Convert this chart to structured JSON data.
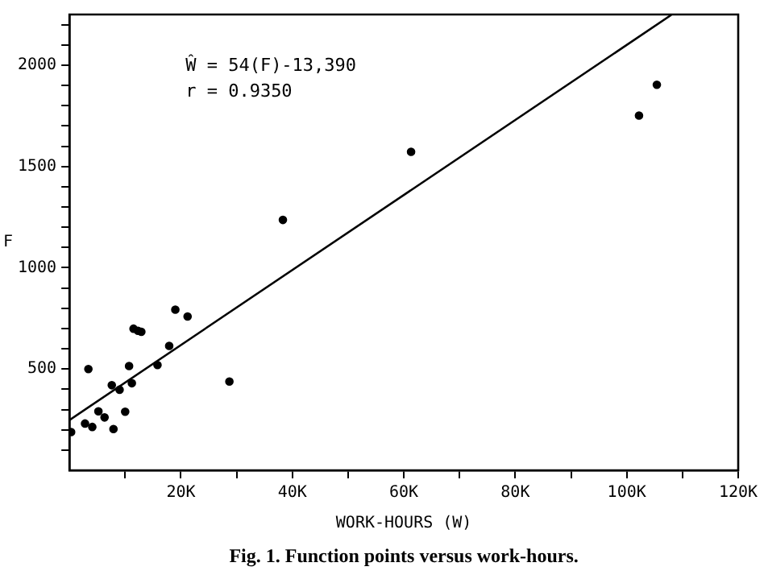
{
  "chart_data": {
    "type": "scatter",
    "xlabel": "WORK-HOURS (W)",
    "ylabel": "F",
    "annotations": [
      "Ŵ = 54(F)-13,390",
      "r = 0.9350",
      "Fig. 1. Function points versus work-hours."
    ],
    "xlim": [
      0,
      120000
    ],
    "xticks": [
      {
        "value": 10000,
        "label": null
      },
      {
        "value": 20000,
        "label": "20K"
      },
      {
        "value": 30000,
        "label": null
      },
      {
        "value": 40000,
        "label": "40K"
      },
      {
        "value": 50000,
        "label": null
      },
      {
        "value": 60000,
        "label": "60K"
      },
      {
        "value": 70000,
        "label": null
      },
      {
        "value": 80000,
        "label": "80K"
      },
      {
        "value": 90000,
        "label": null
      },
      {
        "value": 100000,
        "label": "100K"
      },
      {
        "value": 110000,
        "label": null
      },
      {
        "value": 120000,
        "label": "120K"
      }
    ],
    "ylim": [
      0,
      2250
    ],
    "yticks": [
      {
        "value": 100,
        "label": null
      },
      {
        "value": 200,
        "label": null
      },
      {
        "value": 300,
        "label": null
      },
      {
        "value": 400,
        "label": null
      },
      500,
      {
        "value": 600,
        "label": null
      },
      {
        "value": 700,
        "label": null
      },
      {
        "value": 800,
        "label": null
      },
      {
        "value": 900,
        "label": null
      },
      1000,
      {
        "value": 1100,
        "label": null
      },
      {
        "value": 1200,
        "label": null
      },
      {
        "value": 1300,
        "label": null
      },
      {
        "value": 1400,
        "label": null
      },
      1500,
      {
        "value": 1600,
        "label": null
      },
      {
        "value": 1700,
        "label": null
      },
      {
        "value": 1800,
        "label": null
      },
      {
        "value": 1900,
        "label": null
      },
      2000,
      {
        "value": 2100,
        "label": null
      },
      {
        "value": 2200,
        "label": null
      }
    ],
    "grid": false,
    "marker": "circle",
    "series": [
      {
        "type": "scatter",
        "color": "#000000",
        "x": [
          300,
          2800,
          4100,
          3400,
          5200,
          6300,
          7900,
          7600,
          9000,
          10000,
          10700,
          11200,
          11500,
          12300,
          12900,
          15800,
          17900,
          19000,
          21200,
          28700,
          38300,
          61300,
          102200,
          105400
        ],
        "values": [
          189,
          231,
          214,
          500,
          291,
          261,
          204,
          420,
          398,
          289,
          515,
          430,
          699,
          689,
          684,
          520,
          614,
          793,
          759,
          438,
          1236,
          1572,
          1751,
          1903
        ]
      },
      {
        "type": "line",
        "color": "#000000",
        "marker": "none",
        "x": [
          0,
          108000
        ],
        "values": [
          248,
          2248
        ]
      }
    ]
  }
}
